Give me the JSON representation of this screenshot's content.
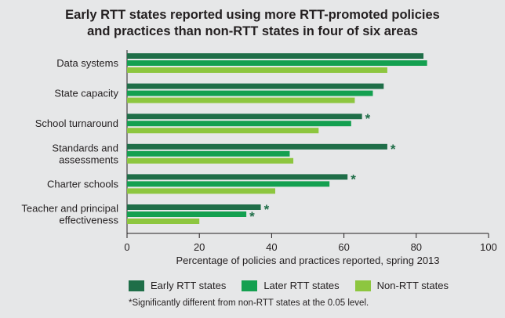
{
  "chart_data": {
    "type": "bar",
    "orientation": "horizontal",
    "title": "Early RTT states reported using more RTT-promoted policies and practices than non-RTT states in four of six areas",
    "title_lines": [
      "Early RTT states reported using more RTT-promoted policies",
      "and practices than non-RTT states in four of six areas"
    ],
    "categories": [
      [
        "Data systems"
      ],
      [
        "State capacity"
      ],
      [
        "School turnaround"
      ],
      [
        "Standards and",
        "assessments"
      ],
      [
        "Charter schools"
      ],
      [
        "Teacher and principal",
        "effectiveness"
      ]
    ],
    "series": [
      {
        "name": "Early RTT states",
        "color": "#1f6e48",
        "values": [
          82,
          71,
          65,
          72,
          61,
          37
        ],
        "significant": [
          false,
          false,
          true,
          true,
          true,
          true
        ]
      },
      {
        "name": "Later RTT states",
        "color": "#14a050",
        "values": [
          83,
          68,
          62,
          45,
          56,
          33
        ],
        "significant": [
          false,
          false,
          false,
          false,
          false,
          true
        ]
      },
      {
        "name": "Non-RTT states",
        "color": "#8dc63f",
        "values": [
          72,
          63,
          53,
          46,
          41,
          20
        ],
        "significant": [
          false,
          false,
          false,
          false,
          false,
          false
        ]
      }
    ],
    "xlabel": "Percentage of policies and practices reported, spring 2013",
    "xlim": [
      0,
      100
    ],
    "xticks": [
      0,
      20,
      40,
      60,
      80,
      100
    ],
    "significance_marker": "*",
    "footnote": "*Significantly different from non-RTT states at the 0.05 level.",
    "legend_position": "bottom"
  }
}
